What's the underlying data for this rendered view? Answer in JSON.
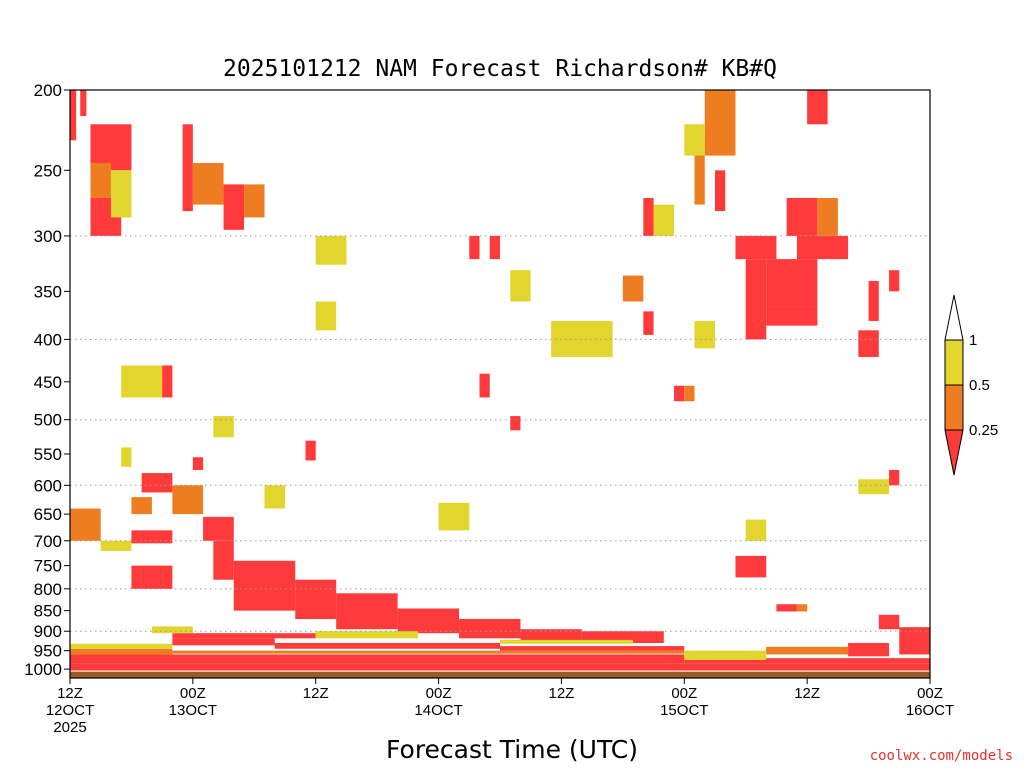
{
  "credit": "coolwx.com/models",
  "colors": {
    "red": "#ff3a3a",
    "orange": "#ee7d22",
    "yellow": "#e2d52e",
    "ground": "#9b5a2a",
    "grid": "#9a9a9a"
  },
  "chart_data": {
    "type": "heatmap",
    "title": "2025101212 NAM Forecast Richardson# KB#Q",
    "xlabel": "Forecast Time (UTC)",
    "ylabel": "",
    "x_unit": "forecast hour from 2025-10-12 12Z",
    "y_unit": "pressure (hPa)",
    "xlim": [
      0,
      84
    ],
    "ylim": [
      200,
      1025
    ],
    "y_scale": "log",
    "y_ticks": [
      200,
      250,
      300,
      350,
      400,
      450,
      500,
      550,
      600,
      650,
      700,
      750,
      800,
      850,
      900,
      950,
      1000
    ],
    "y_gridlines": [
      300,
      400,
      500,
      600,
      700,
      800,
      900
    ],
    "x_ticks": [
      {
        "hour": 0,
        "line1": "12Z",
        "line2": "12OCT",
        "line3": "2025"
      },
      {
        "hour": 12,
        "line1": "00Z",
        "line2": "13OCT",
        "line3": ""
      },
      {
        "hour": 24,
        "line1": "12Z",
        "line2": "",
        "line3": ""
      },
      {
        "hour": 36,
        "line1": "00Z",
        "line2": "14OCT",
        "line3": ""
      },
      {
        "hour": 48,
        "line1": "12Z",
        "line2": "",
        "line3": ""
      },
      {
        "hour": 60,
        "line1": "00Z",
        "line2": "15OCT",
        "line3": ""
      },
      {
        "hour": 72,
        "line1": "12Z",
        "line2": "",
        "line3": ""
      },
      {
        "hour": 84,
        "line1": "00Z",
        "line2": "16OCT",
        "line3": ""
      }
    ],
    "colorbar": {
      "labels": [
        "1",
        "0.5",
        "0.25"
      ],
      "classes": [
        {
          "range": "< 0.25",
          "color": "red"
        },
        {
          "range": "0.25 - 0.5",
          "color": "orange"
        },
        {
          "range": "0.5 - 1",
          "color": "yellow"
        },
        {
          "range": "> 1",
          "color": "white"
        }
      ]
    },
    "bands": [
      {
        "x": [
          0,
          84
        ],
        "p": [
          1007,
          1025
        ],
        "c": "ground"
      },
      {
        "x": [
          0,
          84
        ],
        "p": [
          985,
          1004
        ],
        "c": "red"
      },
      {
        "x": [
          0,
          60
        ],
        "p": [
          960,
          985
        ],
        "c": "red"
      },
      {
        "x": [
          60,
          84
        ],
        "p": [
          970,
          985
        ],
        "c": "red"
      },
      {
        "x": [
          0,
          10
        ],
        "p": [
          945,
          960
        ],
        "c": "orange"
      },
      {
        "x": [
          10,
          60
        ],
        "p": [
          950,
          958
        ],
        "c": "orange"
      },
      {
        "x": [
          0,
          10
        ],
        "p": [
          932,
          945
        ],
        "c": "yellow"
      },
      {
        "x": [
          10,
          20
        ],
        "p": [
          918,
          936
        ],
        "c": "red"
      },
      {
        "x": [
          20,
          42
        ],
        "p": [
          930,
          945
        ],
        "c": "red"
      },
      {
        "x": [
          42,
          60
        ],
        "p": [
          938,
          950
        ],
        "c": "red"
      },
      {
        "x": [
          10,
          24
        ],
        "p": [
          905,
          918
        ],
        "c": "red"
      },
      {
        "x": [
          8,
          12
        ],
        "p": [
          888,
          905
        ],
        "c": "yellow"
      },
      {
        "x": [
          13,
          16
        ],
        "p": [
          655,
          700
        ],
        "c": "red"
      },
      {
        "x": [
          14,
          16
        ],
        "p": [
          700,
          780
        ],
        "c": "red"
      },
      {
        "x": [
          16,
          22
        ],
        "p": [
          740,
          850
        ],
        "c": "red"
      },
      {
        "x": [
          22,
          26
        ],
        "p": [
          780,
          870
        ],
        "c": "red"
      },
      {
        "x": [
          26,
          32
        ],
        "p": [
          810,
          895
        ],
        "c": "red"
      },
      {
        "x": [
          32,
          38
        ],
        "p": [
          845,
          905
        ],
        "c": "red"
      },
      {
        "x": [
          38,
          44
        ],
        "p": [
          870,
          918
        ],
        "c": "red"
      },
      {
        "x": [
          44,
          50
        ],
        "p": [
          895,
          928
        ],
        "c": "red"
      },
      {
        "x": [
          50,
          58
        ],
        "p": [
          900,
          930
        ],
        "c": "red"
      },
      {
        "x": [
          24,
          34
        ],
        "p": [
          900,
          918
        ],
        "c": "yellow"
      },
      {
        "x": [
          42,
          55
        ],
        "p": [
          922,
          932
        ],
        "c": "yellow"
      },
      {
        "x": [
          10,
          13
        ],
        "p": [
          600,
          650
        ],
        "c": "orange"
      },
      {
        "x": [
          7,
          10
        ],
        "p": [
          580,
          612
        ],
        "c": "red"
      },
      {
        "x": [
          6,
          10
        ],
        "p": [
          680,
          705
        ],
        "c": "red"
      },
      {
        "x": [
          6,
          10
        ],
        "p": [
          750,
          800
        ],
        "c": "red"
      },
      {
        "x": [
          3,
          6
        ],
        "p": [
          700,
          720
        ],
        "c": "yellow"
      },
      {
        "x": [
          0,
          3
        ],
        "p": [
          640,
          700
        ],
        "c": "orange"
      },
      {
        "x": [
          5,
          9
        ],
        "p": [
          430,
          470
        ],
        "c": "yellow"
      },
      {
        "x": [
          9,
          10
        ],
        "p": [
          430,
          470
        ],
        "c": "red"
      },
      {
        "x": [
          2,
          6
        ],
        "p": [
          220,
          250
        ],
        "c": "red"
      },
      {
        "x": [
          2,
          4
        ],
        "p": [
          245,
          280
        ],
        "c": "orange"
      },
      {
        "x": [
          2,
          5
        ],
        "p": [
          270,
          300
        ],
        "c": "red"
      },
      {
        "x": [
          4,
          6
        ],
        "p": [
          250,
          285
        ],
        "c": "yellow"
      },
      {
        "x": [
          11,
          12
        ],
        "p": [
          220,
          280
        ],
        "c": "red"
      },
      {
        "x": [
          12,
          15
        ],
        "p": [
          245,
          275
        ],
        "c": "orange"
      },
      {
        "x": [
          15,
          17
        ],
        "p": [
          260,
          295
        ],
        "c": "red"
      },
      {
        "x": [
          17,
          19
        ],
        "p": [
          260,
          285
        ],
        "c": "orange"
      },
      {
        "x": [
          0,
          0.6
        ],
        "p": [
          200,
          230
        ],
        "c": "red"
      },
      {
        "x": [
          1,
          1.6
        ],
        "p": [
          200,
          215
        ],
        "c": "red"
      },
      {
        "x": [
          23,
          24
        ],
        "p": [
          530,
          560
        ],
        "c": "red"
      },
      {
        "x": [
          36,
          39
        ],
        "p": [
          630,
          680
        ],
        "c": "yellow"
      },
      {
        "x": [
          39,
          40
        ],
        "p": [
          300,
          320
        ],
        "c": "red"
      },
      {
        "x": [
          41,
          42
        ],
        "p": [
          300,
          320
        ],
        "c": "red"
      },
      {
        "x": [
          40,
          41
        ],
        "p": [
          440,
          470
        ],
        "c": "red"
      },
      {
        "x": [
          43,
          44
        ],
        "p": [
          495,
          515
        ],
        "c": "red"
      },
      {
        "x": [
          47,
          53
        ],
        "p": [
          380,
          420
        ],
        "c": "yellow"
      },
      {
        "x": [
          54,
          56
        ],
        "p": [
          335,
          360
        ],
        "c": "orange"
      },
      {
        "x": [
          56,
          57
        ],
        "p": [
          270,
          300
        ],
        "c": "red"
      },
      {
        "x": [
          56,
          57
        ],
        "p": [
          370,
          395
        ],
        "c": "red"
      },
      {
        "x": [
          59,
          60
        ],
        "p": [
          455,
          475
        ],
        "c": "red"
      },
      {
        "x": [
          60,
          61
        ],
        "p": [
          455,
          475
        ],
        "c": "orange"
      },
      {
        "x": [
          62,
          65
        ],
        "p": [
          200,
          240
        ],
        "c": "orange"
      },
      {
        "x": [
          61,
          62
        ],
        "p": [
          230,
          275
        ],
        "c": "orange"
      },
      {
        "x": [
          63,
          64
        ],
        "p": [
          250,
          280
        ],
        "c": "red"
      },
      {
        "x": [
          65,
          69
        ],
        "p": [
          300,
          320
        ],
        "c": "red"
      },
      {
        "x": [
          66,
          68
        ],
        "p": [
          320,
          400
        ],
        "c": "red"
      },
      {
        "x": [
          68,
          73
        ],
        "p": [
          320,
          365
        ],
        "c": "red"
      },
      {
        "x": [
          68,
          73
        ],
        "p": [
          365,
          385
        ],
        "c": "red"
      },
      {
        "x": [
          70,
          73
        ],
        "p": [
          270,
          300
        ],
        "c": "red"
      },
      {
        "x": [
          71,
          76
        ],
        "p": [
          300,
          320
        ],
        "c": "red"
      },
      {
        "x": [
          73,
          75
        ],
        "p": [
          270,
          300
        ],
        "c": "orange"
      },
      {
        "x": [
          72,
          74
        ],
        "p": [
          200,
          220
        ],
        "c": "red"
      },
      {
        "x": [
          65,
          68
        ],
        "p": [
          730,
          775
        ],
        "c": "red"
      },
      {
        "x": [
          69,
          71
        ],
        "p": [
          835,
          852
        ],
        "c": "red"
      },
      {
        "x": [
          71,
          72
        ],
        "p": [
          835,
          852
        ],
        "c": "orange"
      },
      {
        "x": [
          77,
          79
        ],
        "p": [
          390,
          420
        ],
        "c": "red"
      },
      {
        "x": [
          78,
          79
        ],
        "p": [
          340,
          380
        ],
        "c": "red"
      },
      {
        "x": [
          80,
          81
        ],
        "p": [
          330,
          350
        ],
        "c": "red"
      },
      {
        "x": [
          77,
          80
        ],
        "p": [
          590,
          615
        ],
        "c": "yellow"
      },
      {
        "x": [
          80,
          81
        ],
        "p": [
          575,
          600
        ],
        "c": "red"
      },
      {
        "x": [
          12,
          13
        ],
        "p": [
          555,
          575
        ],
        "c": "red"
      },
      {
        "x": [
          14,
          16
        ],
        "p": [
          495,
          525
        ],
        "c": "yellow"
      },
      {
        "x": [
          5,
          6
        ],
        "p": [
          540,
          570
        ],
        "c": "yellow"
      },
      {
        "x": [
          24,
          27
        ],
        "p": [
          300,
          325
        ],
        "c": "yellow"
      },
      {
        "x": [
          24,
          26
        ],
        "p": [
          360,
          390
        ],
        "c": "yellow"
      },
      {
        "x": [
          43,
          45
        ],
        "p": [
          330,
          360
        ],
        "c": "yellow"
      },
      {
        "x": [
          61,
          63
        ],
        "p": [
          380,
          410
        ],
        "c": "yellow"
      },
      {
        "x": [
          57,
          59
        ],
        "p": [
          275,
          300
        ],
        "c": "yellow"
      },
      {
        "x": [
          60,
          62
        ],
        "p": [
          220,
          240
        ],
        "c": "yellow"
      },
      {
        "x": [
          66,
          68
        ],
        "p": [
          660,
          700
        ],
        "c": "yellow"
      },
      {
        "x": [
          79,
          81
        ],
        "p": [
          860,
          895
        ],
        "c": "red"
      },
      {
        "x": [
          81,
          84
        ],
        "p": [
          890,
          960
        ],
        "c": "red"
      },
      {
        "x": [
          76,
          80
        ],
        "p": [
          930,
          965
        ],
        "c": "red"
      },
      {
        "x": [
          60,
          68
        ],
        "p": [
          950,
          975
        ],
        "c": "yellow"
      },
      {
        "x": [
          68,
          76
        ],
        "p": [
          940,
          960
        ],
        "c": "orange"
      },
      {
        "x": [
          6,
          8
        ],
        "p": [
          620,
          650
        ],
        "c": "orange"
      },
      {
        "x": [
          19,
          21
        ],
        "p": [
          600,
          640
        ],
        "c": "yellow"
      }
    ]
  }
}
